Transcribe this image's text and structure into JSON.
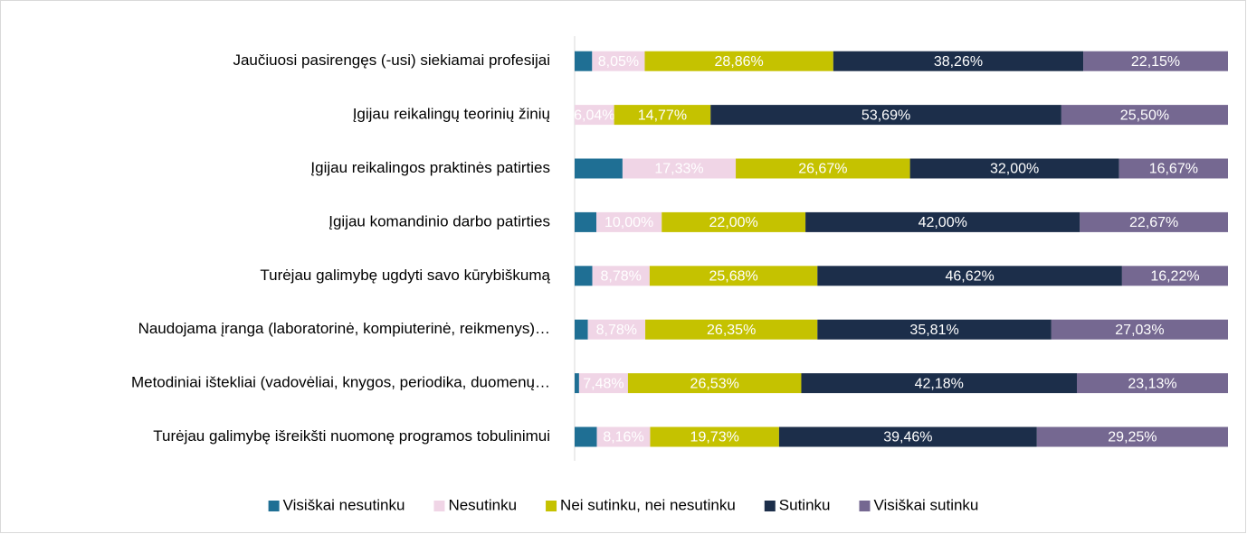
{
  "chart_data": {
    "type": "stacked_bar_horizontal",
    "categories": [
      "Jaučiuosi pasirengęs (-usi) siekiamai profesijai",
      "Įgijau reikalingų teorinių žinių",
      "Įgijau reikalingos praktinės patirties",
      "Įgijau komandinio darbo patirties",
      "Turėjau galimybę ugdyti savo kūrybiškumą",
      "Naudojama įranga (laboratorinė, kompiuterinė, reikmenys)…",
      "Metodiniai ištekliai (vadovėliai, knygos, periodika, duomenų…",
      "Turėjau galimybę išreikšti nuomonę programos tobulinimui"
    ],
    "xlim": [
      0,
      100
    ],
    "legend": "bottom",
    "series": [
      {
        "name": "Visiškai nesutinku",
        "color": "#1f6f94",
        "values": [
          2.68,
          0,
          7.33,
          3.33,
          2.7,
          2.03,
          0.68,
          3.4
        ]
      },
      {
        "name": "Nesutinku",
        "color": "#f0d5e6",
        "values": [
          8.05,
          6.04,
          17.33,
          10.0,
          8.78,
          8.78,
          7.48,
          8.16
        ],
        "value_labels": [
          "8,05%",
          "6,04%",
          "17,33%",
          "10,00%",
          "8,78%",
          "8,78%",
          "7,48%",
          "8,16%"
        ]
      },
      {
        "name": "Nei sutinku, nei nesutinku",
        "color": "#c5c200",
        "values": [
          28.86,
          14.77,
          26.67,
          22.0,
          25.68,
          26.35,
          26.53,
          19.73
        ],
        "value_labels": [
          "28,86%",
          "14,77%",
          "26,67%",
          "22,00%",
          "25,68%",
          "26,35%",
          "26,53%",
          "19,73%"
        ]
      },
      {
        "name": "Sutinku",
        "color": "#1c2e4a",
        "values": [
          38.26,
          53.69,
          32.0,
          42.0,
          46.62,
          35.81,
          42.18,
          39.46
        ],
        "value_labels": [
          "38,26%",
          "53,69%",
          "32,00%",
          "42,00%",
          "46,62%",
          "35,81%",
          "42,18%",
          "39,46%"
        ]
      },
      {
        "name": "Visiškai sutinku",
        "color": "#756891",
        "values": [
          22.15,
          25.5,
          16.67,
          22.67,
          16.22,
          27.03,
          23.13,
          29.25
        ],
        "value_labels": [
          "22,15%",
          "25,50%",
          "16,67%",
          "22,67%",
          "16,22%",
          "27,03%",
          "23,13%",
          "29,25%"
        ]
      }
    ]
  }
}
